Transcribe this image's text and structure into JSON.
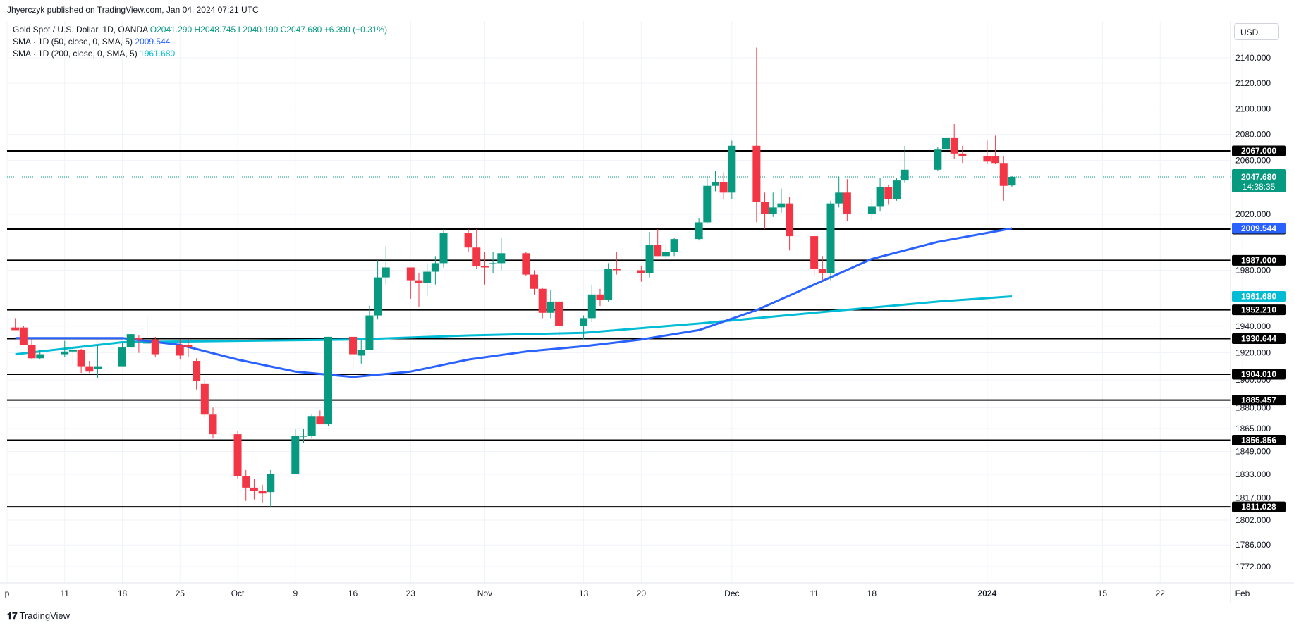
{
  "header": {
    "published": "Jhyerczyk published on TradingView.com, Jan 04, 2024 07:21 UTC"
  },
  "legend": {
    "title": "Gold Spot / U.S. Dollar, 1D, OANDA",
    "open": "O2041.290",
    "high": "H2048.745",
    "low": "L2040.190",
    "close": "C2047.680",
    "change": "+6.390 (+0.31%)",
    "sma50_label": "SMA · 1D (50, close, 0, SMA, 5)",
    "sma50_value": "2009.544",
    "sma200_label": "SMA · 1D (200, close, 0, SMA, 5)",
    "sma200_value": "1961.680"
  },
  "currency": "USD",
  "footer": {
    "brand": "TradingView"
  },
  "colors": {
    "up": "#089981",
    "down": "#f23645",
    "sma50": "#2962ff",
    "sma200": "#00bcd4",
    "hline": "#000000"
  },
  "chart_data": {
    "type": "candlestick",
    "instrument": "Gold Spot / U.S. Dollar",
    "timeframe": "1D",
    "x_tick_labels": [
      "p",
      "11",
      "18",
      "25",
      "Oct",
      "9",
      "16",
      "23",
      "Nov",
      "13",
      "20",
      "Dec",
      "11",
      "18",
      "2024",
      "15",
      "22",
      "Feb"
    ],
    "y_tick_labels": [
      "2140.000",
      "2120.000",
      "2100.000",
      "2080.000",
      "2060.000",
      "2020.000",
      "1980.000",
      "1940.000",
      "1920.000",
      "1900.000",
      "1880.000",
      "1865.000",
      "1849.000",
      "1833.000",
      "1817.000",
      "1802.000",
      "1786.000",
      "1772.000"
    ],
    "ohlc": [
      {
        "date": "Sep 05",
        "o": 1939,
        "h": 1946,
        "l": 1937,
        "c": 1937
      },
      {
        "date": "Sep 06",
        "o": 1939,
        "h": 1940,
        "l": 1926,
        "c": 1926
      },
      {
        "date": "Sep 07",
        "o": 1926,
        "h": 1930,
        "l": 1915,
        "c": 1916
      },
      {
        "date": "Sep 08",
        "o": 1916,
        "h": 1922,
        "l": 1915,
        "c": 1919
      },
      {
        "date": "Sep 11",
        "o": 1919,
        "h": 1929,
        "l": 1917,
        "c": 1921
      },
      {
        "date": "Sep 12",
        "o": 1921,
        "h": 1926,
        "l": 1911,
        "c": 1922
      },
      {
        "date": "Sep 13",
        "o": 1922,
        "h": 1923,
        "l": 1905,
        "c": 1910
      },
      {
        "date": "Sep 14",
        "o": 1910,
        "h": 1914,
        "l": 1905,
        "c": 1906
      },
      {
        "date": "Sep 15",
        "o": 1908,
        "h": 1926,
        "l": 1901,
        "c": 1910
      },
      {
        "date": "Sep 18",
        "o": 1910,
        "h": 1928,
        "l": 1910,
        "c": 1924
      },
      {
        "date": "Sep 19",
        "o": 1924,
        "h": 1934,
        "l": 1924,
        "c": 1934
      },
      {
        "date": "Sep 20",
        "o": 1931,
        "h": 1933,
        "l": 1920,
        "c": 1930
      },
      {
        "date": "Sep 21",
        "o": 1927,
        "h": 1948,
        "l": 1926,
        "c": 1928
      },
      {
        "date": "Sep 22",
        "o": 1930,
        "h": 1932,
        "l": 1917,
        "c": 1919
      },
      {
        "date": "Sep 25",
        "o": 1926,
        "h": 1930,
        "l": 1915,
        "c": 1918
      },
      {
        "date": "Sep 26",
        "o": 1926,
        "h": 1930,
        "l": 1917,
        "c": 1924
      },
      {
        "date": "Sep 27",
        "o": 1914,
        "h": 1916,
        "l": 1893,
        "c": 1899
      },
      {
        "date": "Sep 28",
        "o": 1897,
        "h": 1900,
        "l": 1873,
        "c": 1875
      },
      {
        "date": "Sep 29",
        "o": 1875,
        "h": 1880,
        "l": 1858,
        "c": 1861
      },
      {
        "date": "Oct 02",
        "o": 1861,
        "h": 1863,
        "l": 1830,
        "c": 1832
      },
      {
        "date": "Oct 03",
        "o": 1832,
        "h": 1836,
        "l": 1815,
        "c": 1824
      },
      {
        "date": "Oct 04",
        "o": 1824,
        "h": 1830,
        "l": 1816,
        "c": 1822
      },
      {
        "date": "Oct 05",
        "o": 1822,
        "h": 1826,
        "l": 1814,
        "c": 1820
      },
      {
        "date": "Oct 06",
        "o": 1821,
        "h": 1836,
        "l": 1811,
        "c": 1833
      },
      {
        "date": "Oct 09",
        "o": 1833,
        "h": 1865,
        "l": 1833,
        "c": 1860
      },
      {
        "date": "Oct 10",
        "o": 1860,
        "h": 1865,
        "l": 1855,
        "c": 1860
      },
      {
        "date": "Oct 11",
        "o": 1860,
        "h": 1875,
        "l": 1858,
        "c": 1874
      },
      {
        "date": "Oct 12",
        "o": 1874,
        "h": 1878,
        "l": 1868,
        "c": 1868
      },
      {
        "date": "Oct 13",
        "o": 1868,
        "h": 1932,
        "l": 1867,
        "c": 1932
      },
      {
        "date": "Oct 16",
        "o": 1932,
        "h": 1932,
        "l": 1908,
        "c": 1919
      },
      {
        "date": "Oct 17",
        "o": 1918,
        "h": 1930,
        "l": 1912,
        "c": 1922
      },
      {
        "date": "Oct 18",
        "o": 1922,
        "h": 1955,
        "l": 1922,
        "c": 1948
      },
      {
        "date": "Oct 19",
        "o": 1948,
        "h": 1987,
        "l": 1945,
        "c": 1975
      },
      {
        "date": "Oct 20",
        "o": 1975,
        "h": 1997,
        "l": 1970,
        "c": 1982
      },
      {
        "date": "Oct 23",
        "o": 1982,
        "h": 1982,
        "l": 1960,
        "c": 1973
      },
      {
        "date": "Oct 24",
        "o": 1973,
        "h": 1978,
        "l": 1954,
        "c": 1971
      },
      {
        "date": "Oct 25",
        "o": 1971,
        "h": 1985,
        "l": 1962,
        "c": 1979
      },
      {
        "date": "Oct 26",
        "o": 1979,
        "h": 1990,
        "l": 1970,
        "c": 1985
      },
      {
        "date": "Oct 27",
        "o": 1985,
        "h": 2009,
        "l": 1982,
        "c": 2006
      },
      {
        "date": "Oct 30",
        "o": 2006,
        "h": 2009,
        "l": 1993,
        "c": 1996
      },
      {
        "date": "Oct 31",
        "o": 1996,
        "h": 2009,
        "l": 1981,
        "c": 1983
      },
      {
        "date": "Nov 01",
        "o": 1983,
        "h": 1993,
        "l": 1970,
        "c": 1982
      },
      {
        "date": "Nov 02",
        "o": 1985,
        "h": 1993,
        "l": 1978,
        "c": 1985
      },
      {
        "date": "Nov 03",
        "o": 1985,
        "h": 2003,
        "l": 1980,
        "c": 1992
      },
      {
        "date": "Nov 06",
        "o": 1992,
        "h": 1993,
        "l": 1976,
        "c": 1977
      },
      {
        "date": "Nov 07",
        "o": 1977,
        "h": 1980,
        "l": 1963,
        "c": 1967
      },
      {
        "date": "Nov 08",
        "o": 1967,
        "h": 1968,
        "l": 1946,
        "c": 1950
      },
      {
        "date": "Nov 09",
        "o": 1950,
        "h": 1966,
        "l": 1946,
        "c": 1958
      },
      {
        "date": "Nov 10",
        "o": 1958,
        "h": 1960,
        "l": 1932,
        "c": 1940
      },
      {
        "date": "Nov 13",
        "o": 1940,
        "h": 1948,
        "l": 1930,
        "c": 1946
      },
      {
        "date": "Nov 14",
        "o": 1946,
        "h": 1970,
        "l": 1943,
        "c": 1963
      },
      {
        "date": "Nov 15",
        "o": 1963,
        "h": 1967,
        "l": 1955,
        "c": 1959
      },
      {
        "date": "Nov 16",
        "o": 1959,
        "h": 1985,
        "l": 1958,
        "c": 1981
      },
      {
        "date": "Nov 17",
        "o": 1981,
        "h": 1993,
        "l": 1977,
        "c": 1980
      },
      {
        "date": "Nov 20",
        "o": 1980,
        "h": 1983,
        "l": 1972,
        "c": 1978
      },
      {
        "date": "Nov 21",
        "o": 1978,
        "h": 2007,
        "l": 1975,
        "c": 1998
      },
      {
        "date": "Nov 22",
        "o": 1998,
        "h": 2009,
        "l": 1990,
        "c": 1990
      },
      {
        "date": "Nov 23",
        "o": 1990,
        "h": 1998,
        "l": 1988,
        "c": 1993
      },
      {
        "date": "Nov 24",
        "o": 1993,
        "h": 2003,
        "l": 1990,
        "c": 2002
      },
      {
        "date": "Nov 27",
        "o": 2002,
        "h": 2017,
        "l": 2001,
        "c": 2014
      },
      {
        "date": "Nov 28",
        "o": 2014,
        "h": 2048,
        "l": 2013,
        "c": 2041
      },
      {
        "date": "Nov 29",
        "o": 2041,
        "h": 2052,
        "l": 2037,
        "c": 2044
      },
      {
        "date": "Nov 30",
        "o": 2044,
        "h": 2051,
        "l": 2031,
        "c": 2036
      },
      {
        "date": "Dec 01",
        "o": 2036,
        "h": 2075,
        "l": 2031,
        "c": 2071
      },
      {
        "date": "Dec 04",
        "o": 2071,
        "h": 2148,
        "l": 2014,
        "c": 2029
      },
      {
        "date": "Dec 05",
        "o": 2029,
        "h": 2036,
        "l": 2009,
        "c": 2020
      },
      {
        "date": "Dec 06",
        "o": 2020,
        "h": 2036,
        "l": 2018,
        "c": 2025
      },
      {
        "date": "Dec 07",
        "o": 2025,
        "h": 2039,
        "l": 2021,
        "c": 2028
      },
      {
        "date": "Dec 08",
        "o": 2028,
        "h": 2033,
        "l": 1994,
        "c": 2004
      },
      {
        "date": "Dec 11",
        "o": 2004,
        "h": 2005,
        "l": 1976,
        "c": 1981
      },
      {
        "date": "Dec 12",
        "o": 1981,
        "h": 1990,
        "l": 1973,
        "c": 1978
      },
      {
        "date": "Dec 13",
        "o": 1978,
        "h": 2030,
        "l": 1973,
        "c": 2028
      },
      {
        "date": "Dec 14",
        "o": 2028,
        "h": 2048,
        "l": 2025,
        "c": 2036
      },
      {
        "date": "Dec 15",
        "o": 2036,
        "h": 2046,
        "l": 2015,
        "c": 2020
      },
      {
        "date": "Dec 18",
        "o": 2020,
        "h": 2031,
        "l": 2016,
        "c": 2026
      },
      {
        "date": "Dec 19",
        "o": 2026,
        "h": 2047,
        "l": 2022,
        "c": 2040
      },
      {
        "date": "Dec 20",
        "o": 2040,
        "h": 2042,
        "l": 2027,
        "c": 2031
      },
      {
        "date": "Dec 21",
        "o": 2031,
        "h": 2047,
        "l": 2030,
        "c": 2045
      },
      {
        "date": "Dec 22",
        "o": 2045,
        "h": 2071,
        "l": 2043,
        "c": 2053
      },
      {
        "date": "Dec 26",
        "o": 2053,
        "h": 2070,
        "l": 2052,
        "c": 2068
      },
      {
        "date": "Dec 27",
        "o": 2068,
        "h": 2084,
        "l": 2065,
        "c": 2077
      },
      {
        "date": "Dec 28",
        "o": 2077,
        "h": 2088,
        "l": 2061,
        "c": 2065
      },
      {
        "date": "Dec 29",
        "o": 2065,
        "h": 2071,
        "l": 2058,
        "c": 2063
      },
      {
        "date": "Jan 01",
        "o": 2063,
        "h": 2075,
        "l": 2057,
        "c": 2059
      },
      {
        "date": "Jan 02",
        "o": 2063,
        "h": 2079,
        "l": 2057,
        "c": 2058
      },
      {
        "date": "Jan 03",
        "o": 2058,
        "h": 2063,
        "l": 2030,
        "c": 2041
      },
      {
        "date": "Jan 04",
        "o": 2041.29,
        "h": 2048.745,
        "l": 2040.19,
        "c": 2047.68
      }
    ],
    "sma50": {
      "name": "SMA · 1D (50, close, 0, SMA, 5)",
      "last": 2009.544,
      "points": [
        [
          "Sep 05",
          1931
        ],
        [
          "Sep 18",
          1931
        ],
        [
          "Sep 25",
          1926
        ],
        [
          "Oct 02",
          1915
        ],
        [
          "Oct 09",
          1906
        ],
        [
          "Oct 16",
          1902
        ],
        [
          "Oct 23",
          1906
        ],
        [
          "Oct 30",
          1915
        ],
        [
          "Nov 06",
          1921
        ],
        [
          "Nov 13",
          1925
        ],
        [
          "Nov 20",
          1930
        ],
        [
          "Nov 27",
          1937
        ],
        [
          "Dec 04",
          1952
        ],
        [
          "Dec 11",
          1970
        ],
        [
          "Dec 18",
          1988
        ],
        [
          "Dec 26",
          2000
        ],
        [
          "Jan 04",
          2009.544
        ]
      ]
    },
    "sma200": {
      "name": "SMA · 1D (200, close, 0, SMA, 5)",
      "last": 1961.68,
      "points": [
        [
          "Sep 05",
          1919
        ],
        [
          "Sep 18",
          1928
        ],
        [
          "Oct 02",
          1929
        ],
        [
          "Oct 16",
          1930
        ],
        [
          "Oct 30",
          1933
        ],
        [
          "Nov 13",
          1935
        ],
        [
          "Nov 27",
          1942
        ],
        [
          "Dec 11",
          1950
        ],
        [
          "Dec 26",
          1958
        ],
        [
          "Jan 04",
          1961.68
        ]
      ]
    },
    "horizontal_levels": [
      "2067.000",
      "2009.000",
      "1987.000",
      "1952.210",
      "1930.644",
      "1904.010",
      "1885.457",
      "1856.856",
      "1811.028"
    ],
    "last_price": {
      "value": "2047.680",
      "countdown": "14:38:35"
    },
    "sma50_tag": "2009.544",
    "sma200_tag": "1961.680"
  }
}
